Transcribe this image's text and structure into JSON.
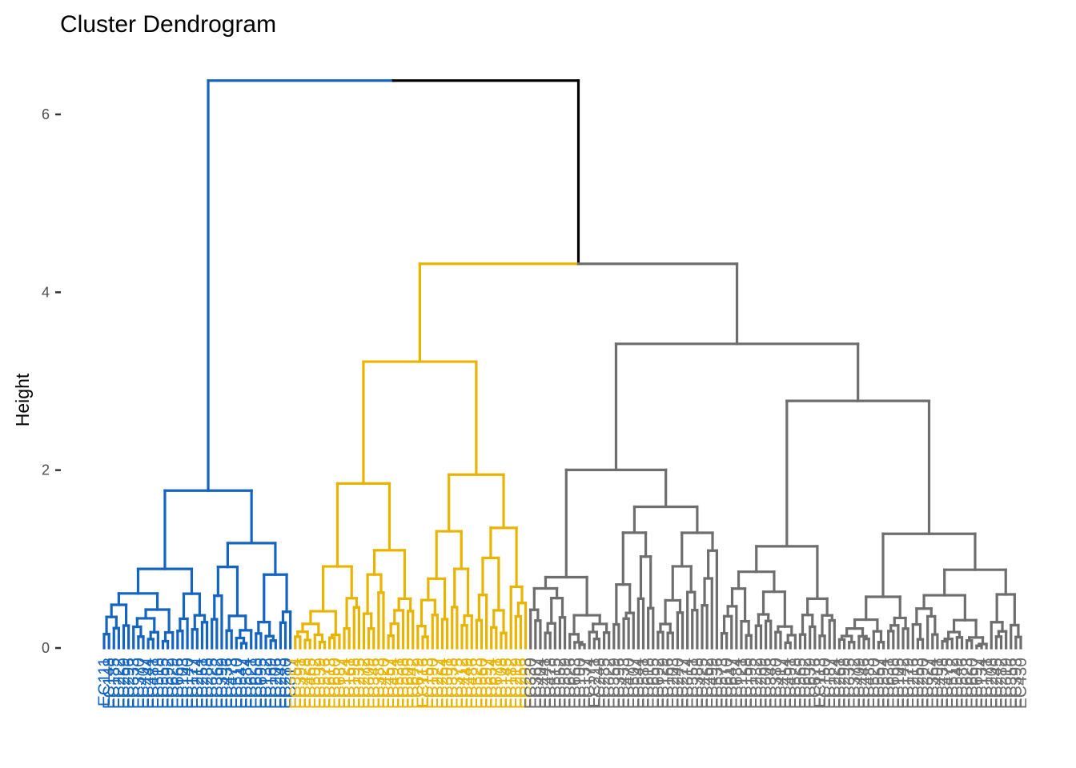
{
  "chart_data": {
    "type": "dendrogram",
    "title": "Cluster Dendrogram",
    "xlabel": "",
    "ylabel": "Height",
    "ylim": [
      0,
      6.5
    ],
    "yticks": [
      0,
      2,
      4,
      6
    ],
    "grid": false,
    "colors": {
      "cluster_1": "#1565c0",
      "cluster_2": "#e8b400",
      "cluster_3": "#6e6e6e",
      "root": "#000000"
    },
    "top_merges": [
      {
        "name": "root",
        "height": 6.38,
        "children": [
          "cluster_1",
          "cluster_2+3"
        ]
      },
      {
        "name": "cluster_2+3",
        "height": 4.32,
        "children": [
          "cluster_2",
          "cluster_3"
        ]
      },
      {
        "name": "cluster_1",
        "height": 1.77
      },
      {
        "name": "cluster_2",
        "height": 3.22
      },
      {
        "name": "cluster_3",
        "height": 3.42
      }
    ],
    "leaf_label_prefix": "EC",
    "series": [
      {
        "cluster": 1,
        "leaf_count": 39
      },
      {
        "cluster": 2,
        "leaf_count": 48
      },
      {
        "cluster": 3,
        "leaf_count": 101
      }
    ]
  }
}
